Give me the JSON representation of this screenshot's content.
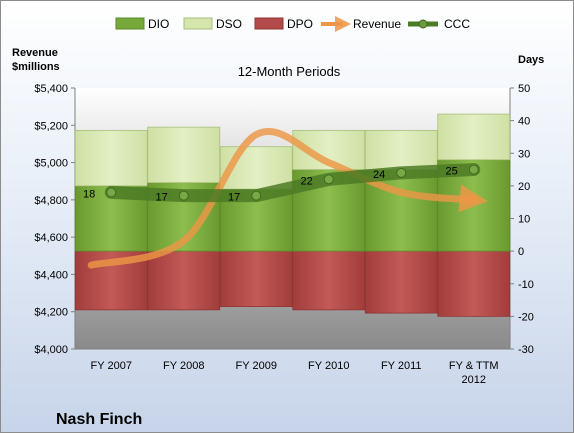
{
  "chart_data": {
    "type": "bar",
    "title": "",
    "subtitle": "12-Month Periods",
    "company": "Nash Finch",
    "left_axis_title_lines": [
      "Revenue",
      "$millions"
    ],
    "right_axis_title": "Days",
    "left_axis": {
      "min": 4000,
      "max": 5400,
      "step": 200,
      "tick_labels": [
        "$4,000",
        "$4,200",
        "$4,400",
        "$4,600",
        "$4,800",
        "$5,000",
        "$5,200",
        "$5,400"
      ]
    },
    "right_axis": {
      "min": -30,
      "max": 50,
      "step": 10,
      "tick_labels": [
        "-30",
        "-20",
        "-10",
        "0",
        "10",
        "20",
        "30",
        "40",
        "50"
      ]
    },
    "categories": [
      [
        "FY 2007"
      ],
      [
        "FY 2008"
      ],
      [
        "FY 2009"
      ],
      [
        "FY 2010"
      ],
      [
        "FY 2011"
      ],
      [
        "FY & TTM",
        "2012"
      ]
    ],
    "legend": [
      "DIO",
      "DSO",
      "DPO",
      "Revenue",
      "CCC"
    ],
    "legend_placement": "top",
    "grid": false,
    "series": [
      {
        "name": "DIO",
        "kind": "stacked-bar",
        "axis": "days",
        "color": "#77a83a",
        "values": [
          20,
          21,
          19,
          25,
          25,
          28
        ]
      },
      {
        "name": "DSO",
        "kind": "stacked-bar",
        "axis": "days",
        "color": "#d6e6ac",
        "values": [
          17,
          17,
          13,
          12,
          12,
          14
        ]
      },
      {
        "name": "DPO",
        "kind": "negative-bar",
        "axis": "days",
        "color": "#b24b49",
        "values": [
          -18,
          -18,
          -17,
          -18,
          -19,
          -20
        ]
      },
      {
        "name": "Revenue",
        "kind": "smooth-line",
        "axis": "revenue",
        "color": "#ed9646",
        "values": [
          4450,
          4580,
          5150,
          5000,
          4840,
          4800
        ]
      },
      {
        "name": "CCC",
        "kind": "line-markers",
        "axis": "days",
        "color": "#4c7a25",
        "values": [
          18,
          17,
          17,
          22,
          24,
          25
        ]
      }
    ],
    "data_labels": [
      "18",
      "17",
      "17",
      "22",
      "24",
      "25"
    ]
  }
}
